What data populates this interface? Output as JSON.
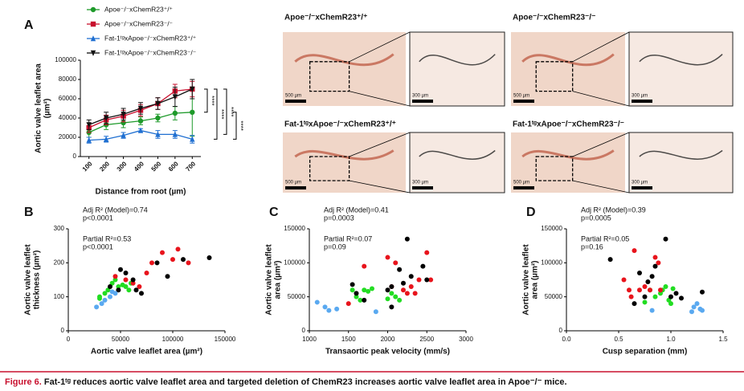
{
  "chart_data": [
    {
      "type": "line",
      "panel": "A",
      "ylabel": [
        "Aortic valve leaflet area",
        "(µm²)"
      ],
      "xlabel": "Distance from root (µm)",
      "categories": [
        "100",
        "200",
        "300",
        "400",
        "500",
        "600",
        "700"
      ],
      "ylim": [
        0,
        100000
      ],
      "yticks": [
        0,
        20000,
        40000,
        60000,
        80000,
        100000
      ],
      "series": [
        {
          "name": "Apoe⁻/⁻xChemR23⁺/⁺",
          "color": "#1e9a2a",
          "marker": "circle",
          "values": [
            25000,
            33000,
            35000,
            37000,
            40000,
            45000,
            46000
          ],
          "errors": [
            5000,
            5000,
            5000,
            4000,
            4000,
            7000,
            25000
          ]
        },
        {
          "name": "Apoe⁻/⁻xChemR23⁻/⁻",
          "color": "#c8102e",
          "marker": "square",
          "values": [
            30000,
            38000,
            42000,
            48000,
            55000,
            68000,
            70000
          ],
          "errors": [
            5000,
            5000,
            6000,
            6000,
            6000,
            7000,
            8000
          ]
        },
        {
          "name": "Fat-1ᵗᵍxApoe⁻/⁻xChemR23⁺/⁺",
          "color": "#1f6fd1",
          "marker": "triangle",
          "values": [
            17000,
            18000,
            22000,
            27000,
            23000,
            23000,
            18000
          ],
          "errors": [
            3000,
            3000,
            3000,
            2000,
            4000,
            4000,
            4000
          ]
        },
        {
          "name": "Fat-1ᵗᵍxApoe⁻/⁻xChemR23⁻/⁻",
          "color": "#111111",
          "marker": "triangle-down",
          "values": [
            33000,
            40000,
            44000,
            50000,
            55000,
            62000,
            70000
          ],
          "errors": [
            5000,
            6000,
            6000,
            6000,
            6000,
            10000,
            10000
          ]
        }
      ],
      "annotations": [
        "****",
        "****",
        "****",
        "****"
      ]
    },
    {
      "type": "scatter",
      "panel": "B",
      "ylabel": [
        "Aortic valve leaflet",
        "thickness (µm²)"
      ],
      "xlabel": "Aortic valve leaflet area (µm²)",
      "xlim": [
        0,
        150000
      ],
      "xticks": [
        0,
        50000,
        100000,
        150000
      ],
      "ylim": [
        0,
        300
      ],
      "yticks": [
        0,
        100,
        200,
        300
      ],
      "stats": [
        "Adj R² (Model)=0.74",
        "p<0.0001",
        "Partial R²=0.53",
        "p<0.0001"
      ],
      "series": [
        {
          "color": "#22dd22",
          "x": [
            30000,
            35000,
            38000,
            42000,
            45000,
            48000,
            52000,
            55000,
            58000,
            60000,
            30000
          ],
          "y": [
            95,
            110,
            120,
            140,
            150,
            130,
            135,
            130,
            120,
            140,
            100
          ]
        },
        {
          "color": "#e8141c",
          "x": [
            45000,
            55000,
            62000,
            68000,
            75000,
            80000,
            90000,
            100000,
            105000,
            115000
          ],
          "y": [
            160,
            150,
            140,
            130,
            170,
            200,
            230,
            210,
            240,
            200
          ]
        },
        {
          "color": "#000000",
          "x": [
            40000,
            48000,
            50000,
            55000,
            62000,
            65000,
            70000,
            85000,
            95000,
            110000,
            135000
          ],
          "y": [
            130,
            120,
            180,
            170,
            150,
            120,
            110,
            200,
            160,
            210,
            215
          ]
        },
        {
          "color": "#5aa9f0",
          "x": [
            27000,
            32000,
            35000,
            40000,
            42000,
            45000
          ],
          "y": [
            70,
            80,
            90,
            100,
            115,
            110
          ]
        }
      ]
    },
    {
      "type": "scatter",
      "panel": "C",
      "ylabel": [
        "Aortic valve leaflet",
        "area (µm²)"
      ],
      "xlabel": "Transaortic peak velocity (mm/s)",
      "xlim": [
        1000,
        3000
      ],
      "xticks": [
        1000,
        1500,
        2000,
        2500,
        3000
      ],
      "ylim": [
        0,
        150000
      ],
      "yticks": [
        0,
        50000,
        100000,
        150000
      ],
      "stats": [
        "Adj R² (Model)=0.41",
        "p=0.0003",
        "Partial R²=0.07",
        "p=0.09"
      ],
      "series": [
        {
          "color": "#22dd22",
          "x": [
            1600,
            1650,
            1700,
            1750,
            1800,
            2050,
            2100,
            2150,
            1550,
            2000
          ],
          "y": [
            50000,
            45000,
            60000,
            58000,
            62000,
            55000,
            50000,
            45000,
            60000,
            47000
          ]
        },
        {
          "color": "#e8141c",
          "x": [
            1500,
            1700,
            2000,
            2050,
            2100,
            2200,
            2300,
            2350,
            2400,
            2500,
            2550,
            2250
          ],
          "y": [
            40000,
            95000,
            108000,
            65000,
            100000,
            60000,
            65000,
            55000,
            75000,
            115000,
            75000,
            55000
          ]
        },
        {
          "color": "#000000",
          "x": [
            1550,
            1600,
            1700,
            2000,
            2050,
            2150,
            2200,
            2250,
            2300,
            2450,
            2500,
            2050
          ],
          "y": [
            68000,
            55000,
            45000,
            60000,
            35000,
            90000,
            70000,
            135000,
            80000,
            95000,
            75000,
            65000
          ]
        },
        {
          "color": "#5aa9f0",
          "x": [
            1100,
            1200,
            1250,
            1350,
            1850
          ],
          "y": [
            42000,
            35000,
            30000,
            32000,
            28000
          ]
        }
      ]
    },
    {
      "type": "scatter",
      "panel": "D",
      "ylabel": [
        "Aortic valve leaflet",
        "area (µm²)"
      ],
      "xlabel": "Cusp separation (mm)",
      "xlim": [
        0,
        1.5
      ],
      "xticks": [
        {
          "value": 0,
          "label": "0.0"
        },
        0.5,
        {
          "value": 1,
          "label": "1.0"
        },
        1.5
      ],
      "ylim": [
        0,
        150000
      ],
      "yticks": [
        0,
        50000,
        100000,
        150000
      ],
      "stats": [
        "Adj R² (Model)=0.39",
        "p=0.0005",
        "Partial R²=0.05",
        "p=0.16"
      ],
      "series": [
        {
          "color": "#22dd22",
          "x": [
            0.75,
            0.85,
            0.9,
            0.92,
            0.95,
            0.98,
            1.0,
            1.02,
            0.8
          ],
          "y": [
            42000,
            50000,
            55000,
            60000,
            65000,
            45000,
            40000,
            62000,
            60000
          ]
        },
        {
          "color": "#e8141c",
          "x": [
            0.55,
            0.6,
            0.65,
            0.7,
            0.75,
            0.8,
            0.85,
            0.88,
            0.9,
            0.62
          ],
          "y": [
            75000,
            60000,
            118000,
            60000,
            65000,
            60000,
            108000,
            100000,
            60000,
            50000
          ]
        },
        {
          "color": "#000000",
          "x": [
            0.42,
            0.65,
            0.7,
            0.75,
            0.82,
            0.85,
            0.95,
            1.0,
            1.05,
            1.1,
            1.3,
            0.78
          ],
          "y": [
            105000,
            40000,
            85000,
            50000,
            80000,
            95000,
            135000,
            50000,
            55000,
            48000,
            57000,
            72000
          ]
        },
        {
          "color": "#5aa9f0",
          "x": [
            0.82,
            1.2,
            1.22,
            1.25,
            1.28,
            1.3
          ],
          "y": [
            30000,
            28000,
            35000,
            40000,
            32000,
            30000
          ]
        }
      ]
    }
  ],
  "images": [
    {
      "title": "Apoe⁻/⁻xChemR23⁺/⁺",
      "scale_bars": [
        "500 µm",
        "300 µm"
      ]
    },
    {
      "title": "Apoe⁻/⁻xChemR23⁻/⁻",
      "scale_bars": [
        "500 µm",
        "300 µm"
      ]
    },
    {
      "title": "Fat-1ᵗᵍxApoe⁻/⁻xChemR23⁺/⁺",
      "scale_bars": [
        "500 µm",
        "300 µm"
      ]
    },
    {
      "title": "Fat-1ᵗᵍxApoe⁻/⁻xChemR23⁻/⁻",
      "scale_bars": [
        "500 µm",
        "300 µm"
      ]
    }
  ],
  "caption": {
    "label": "Figure 6.",
    "text": "Fat-1ᵗᵍ reduces aortic valve leaflet area and targeted deletion of ChemR23 increases aortic valve leaflet area in Apoe⁻/⁻ mice."
  }
}
